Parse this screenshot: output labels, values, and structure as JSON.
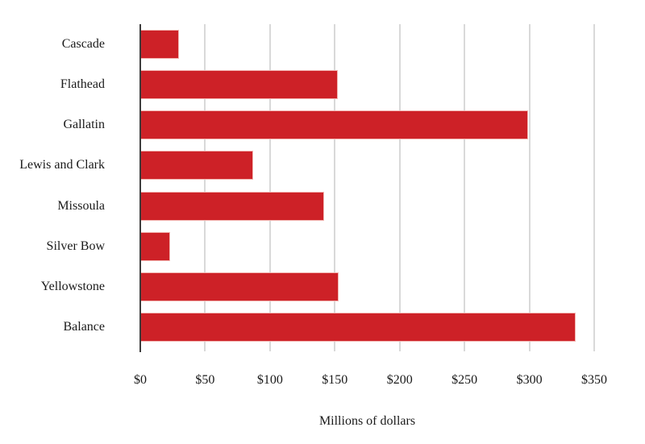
{
  "chart_data": {
    "type": "bar",
    "orientation": "horizontal",
    "title": "",
    "xlabel": "Millions of dollars",
    "ylabel": "",
    "categories": [
      "Cascade",
      "Flathead",
      "Gallatin",
      "Lewis and Clark",
      "Missoula",
      "Silver Bow",
      "Yellowstone",
      "Balance"
    ],
    "values": [
      30,
      152,
      299,
      87,
      142,
      23,
      153,
      336
    ],
    "xlim": [
      0,
      350
    ],
    "x_ticks": [
      0,
      50,
      100,
      150,
      200,
      250,
      300,
      350
    ],
    "x_tick_labels": [
      "$0",
      "$50",
      "$100",
      "$150",
      "$200",
      "$250",
      "$300",
      "$350"
    ],
    "grid": "vertical",
    "legend": "none",
    "colors": {
      "bar_fill": "#cd2127",
      "bar_border": "#f2b4b0",
      "gridline": "#d9d9d9",
      "axis_line": "#3d3d3d",
      "text": "#1a1a1a",
      "background": "#ffffff"
    }
  }
}
